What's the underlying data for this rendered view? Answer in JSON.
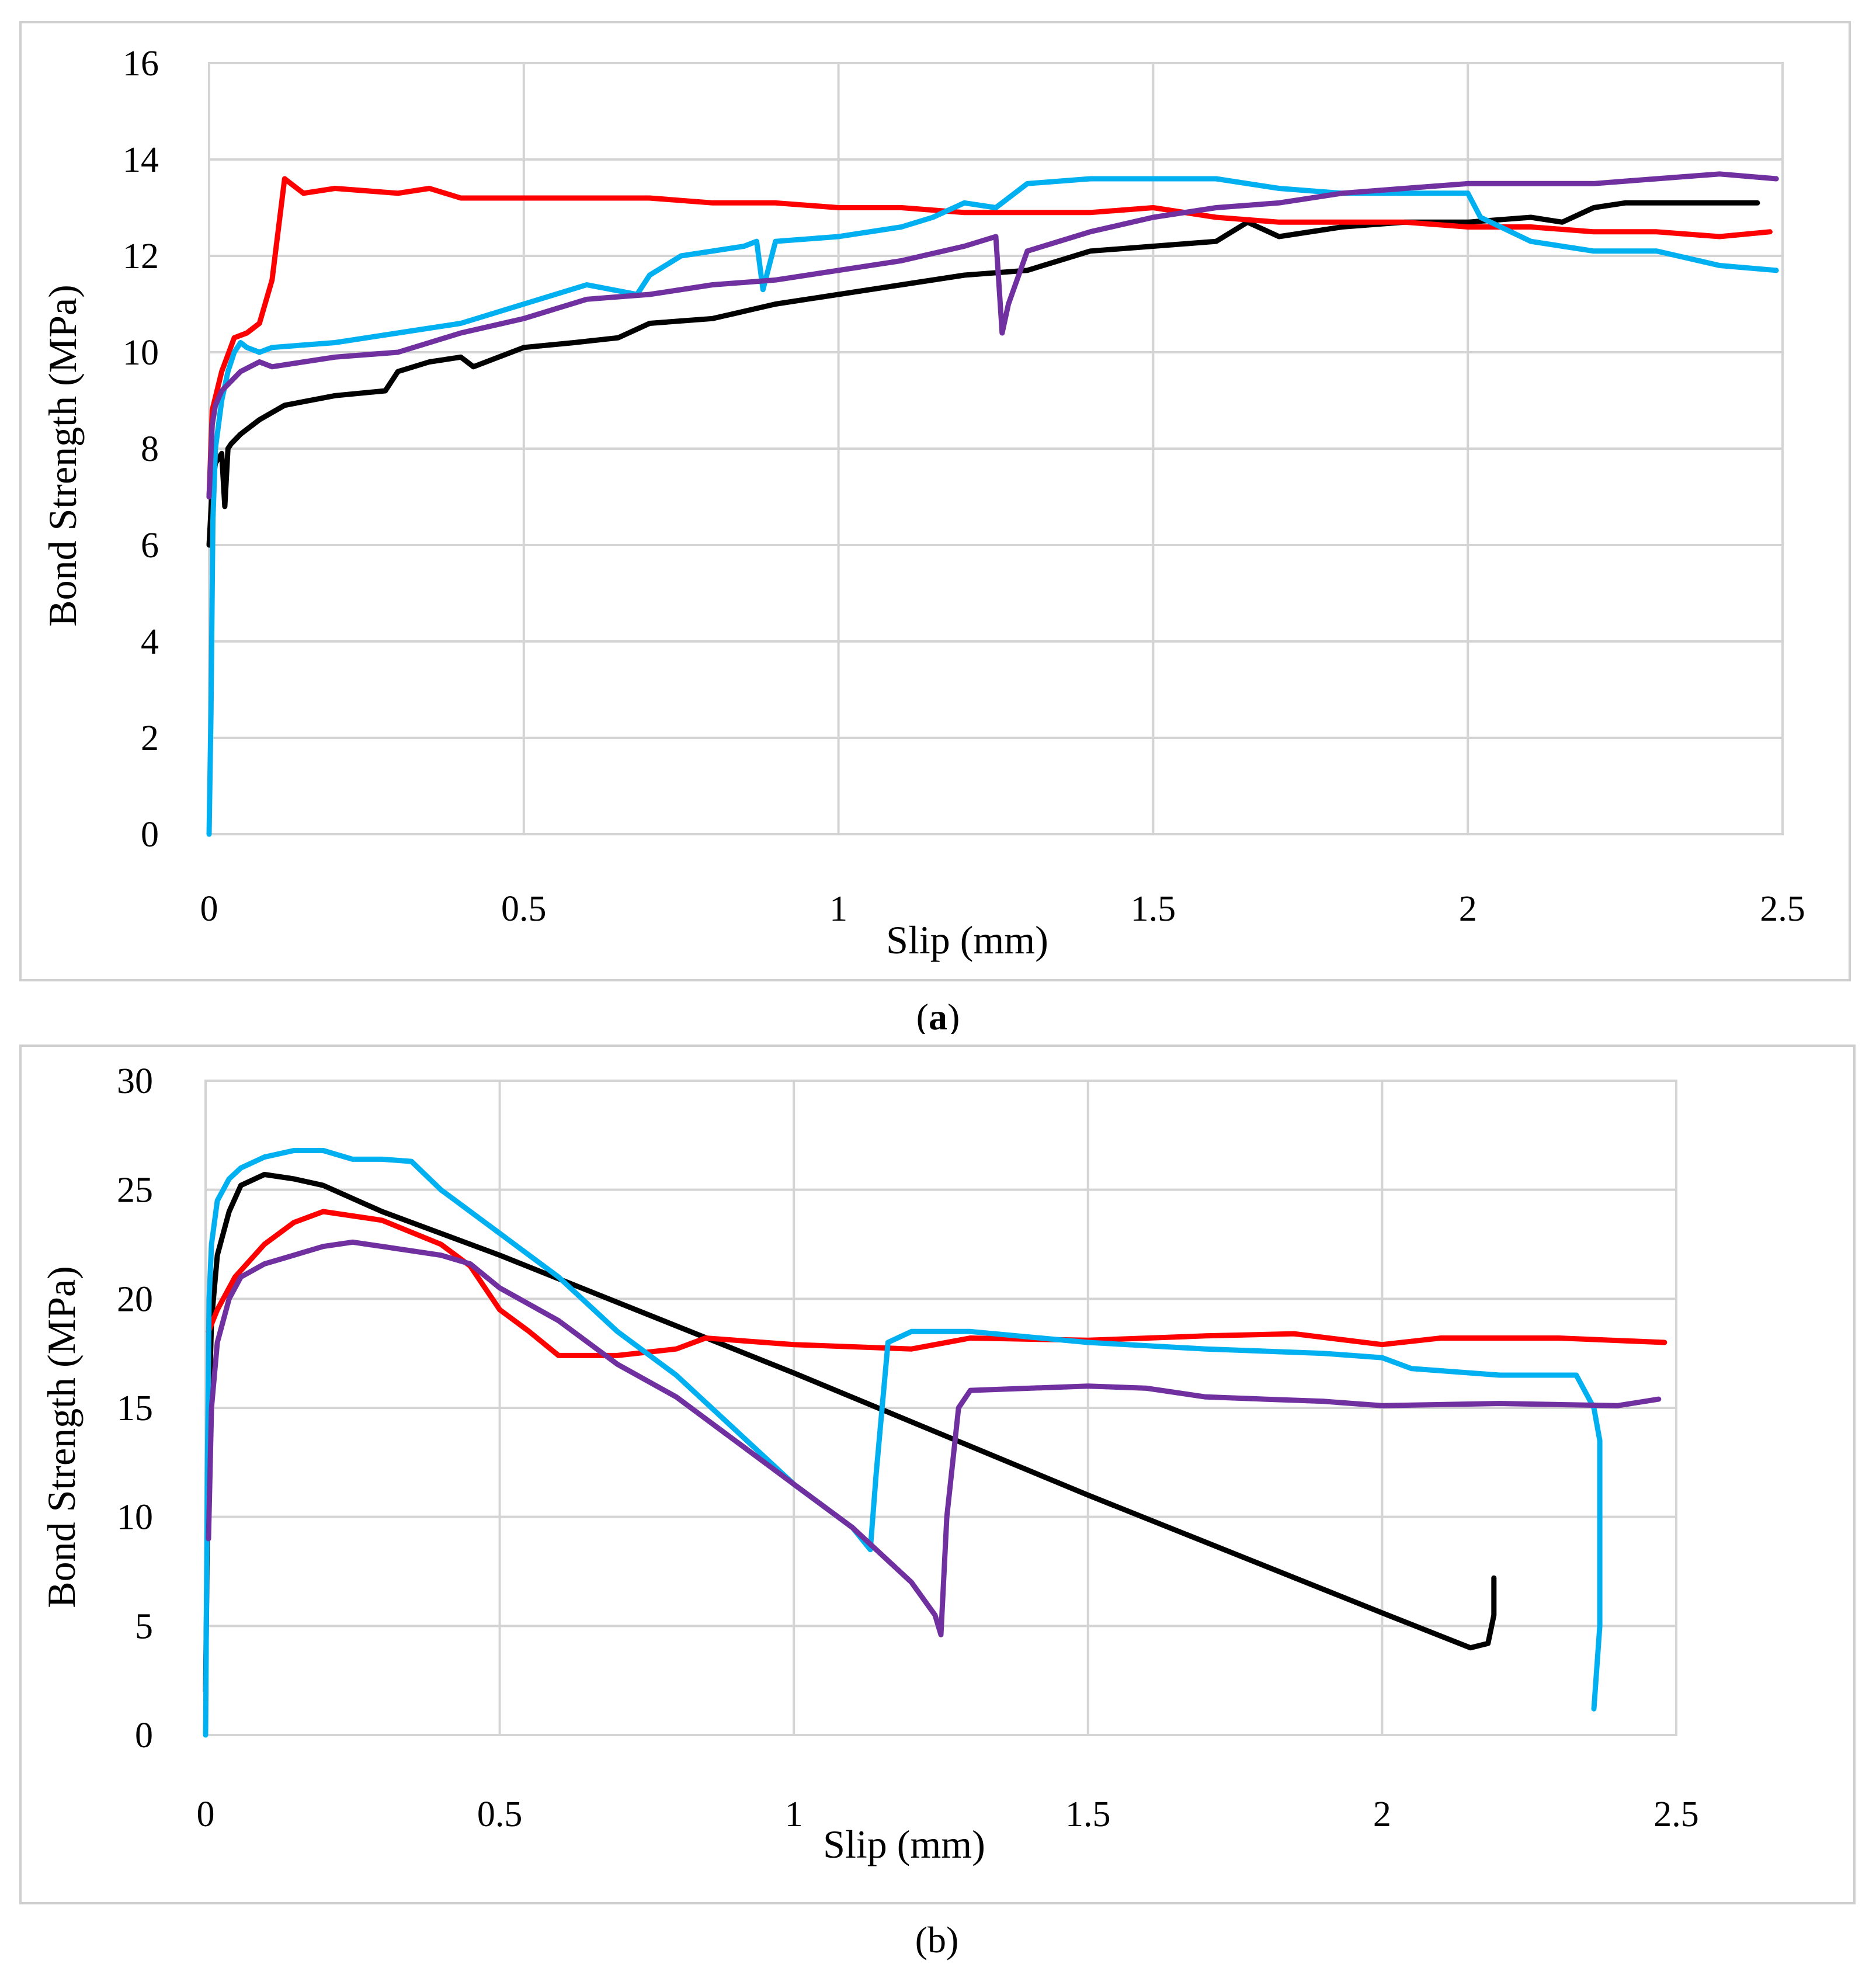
{
  "chart_data": [
    {
      "type": "line",
      "caption": "(a)",
      "caption_letter": "a",
      "xlabel": "Slip (mm)",
      "ylabel": "Bond Strength (MPa)",
      "xlim": [
        0,
        2.5
      ],
      "ylim": [
        0,
        16
      ],
      "xticks": [
        "0",
        "0.5",
        "1",
        "1.5",
        "2",
        "2.5"
      ],
      "yticks": [
        "0",
        "2",
        "4",
        "6",
        "8",
        "10",
        "12",
        "14",
        "16"
      ],
      "grid": true,
      "legend": "none",
      "series": [
        {
          "color": "#000000",
          "x": [
            0,
            0.005,
            0.01,
            0.02,
            0.025,
            0.03,
            0.035,
            0.05,
            0.08,
            0.12,
            0.2,
            0.28,
            0.3,
            0.35,
            0.4,
            0.42,
            0.5,
            0.58,
            0.65,
            0.7,
            0.8,
            0.9,
            1.0,
            1.1,
            1.2,
            1.3,
            1.35,
            1.4,
            1.5,
            1.6,
            1.65,
            1.7,
            1.8,
            1.9,
            2.0,
            2.1,
            2.15,
            2.2,
            2.25,
            2.46
          ],
          "y": [
            6.0,
            7.2,
            7.7,
            7.9,
            6.8,
            8.0,
            8.1,
            8.3,
            8.6,
            8.9,
            9.1,
            9.2,
            9.6,
            9.8,
            9.9,
            9.7,
            10.1,
            10.2,
            10.3,
            10.6,
            10.7,
            11.0,
            11.2,
            11.4,
            11.6,
            11.7,
            11.9,
            12.1,
            12.2,
            12.3,
            12.7,
            12.4,
            12.6,
            12.7,
            12.7,
            12.8,
            12.7,
            13.0,
            13.1,
            13.1
          ]
        },
        {
          "color": "#ff0000",
          "x": [
            0,
            0.005,
            0.02,
            0.04,
            0.06,
            0.08,
            0.1,
            0.12,
            0.13,
            0.15,
            0.2,
            0.3,
            0.35,
            0.4,
            0.5,
            0.6,
            0.7,
            0.8,
            0.9,
            1.0,
            1.1,
            1.2,
            1.3,
            1.4,
            1.5,
            1.6,
            1.7,
            1.8,
            1.9,
            2.0,
            2.1,
            2.2,
            2.3,
            2.4,
            2.48
          ],
          "y": [
            7.0,
            8.8,
            9.6,
            10.3,
            10.4,
            10.6,
            11.5,
            13.6,
            13.5,
            13.3,
            13.4,
            13.3,
            13.4,
            13.2,
            13.2,
            13.2,
            13.2,
            13.1,
            13.1,
            13.0,
            13.0,
            12.9,
            12.9,
            12.9,
            13.0,
            12.8,
            12.7,
            12.7,
            12.7,
            12.6,
            12.6,
            12.5,
            12.5,
            12.4,
            12.5
          ]
        },
        {
          "color": "#00b0f0",
          "x": [
            0,
            0.003,
            0.006,
            0.01,
            0.02,
            0.03,
            0.04,
            0.05,
            0.06,
            0.08,
            0.1,
            0.2,
            0.3,
            0.4,
            0.5,
            0.6,
            0.68,
            0.7,
            0.75,
            0.85,
            0.87,
            0.88,
            0.9,
            1.0,
            1.1,
            1.15,
            1.2,
            1.25,
            1.3,
            1.4,
            1.5,
            1.6,
            1.7,
            1.8,
            1.9,
            2.0,
            2.02,
            2.1,
            2.2,
            2.3,
            2.4,
            2.49
          ],
          "y": [
            0.0,
            2.5,
            6.5,
            8.0,
            9.0,
            9.6,
            10.0,
            10.2,
            10.1,
            10.0,
            10.1,
            10.2,
            10.4,
            10.6,
            11.0,
            11.4,
            11.2,
            11.6,
            12.0,
            12.2,
            12.3,
            11.3,
            12.3,
            12.4,
            12.6,
            12.8,
            13.1,
            13.0,
            13.5,
            13.6,
            13.6,
            13.6,
            13.4,
            13.3,
            13.3,
            13.3,
            12.8,
            12.3,
            12.1,
            12.1,
            11.8,
            11.7
          ]
        },
        {
          "color": "#7030a0",
          "x": [
            0,
            0.005,
            0.01,
            0.02,
            0.05,
            0.08,
            0.1,
            0.2,
            0.3,
            0.35,
            0.4,
            0.5,
            0.6,
            0.7,
            0.8,
            0.9,
            1.0,
            1.1,
            1.2,
            1.25,
            1.26,
            1.27,
            1.3,
            1.4,
            1.5,
            1.6,
            1.7,
            1.8,
            1.9,
            2.0,
            2.1,
            2.2,
            2.3,
            2.4,
            2.49
          ],
          "y": [
            7.0,
            8.5,
            8.9,
            9.2,
            9.6,
            9.8,
            9.7,
            9.9,
            10.0,
            10.2,
            10.4,
            10.7,
            11.1,
            11.2,
            11.4,
            11.5,
            11.7,
            11.9,
            12.2,
            12.4,
            10.4,
            11.0,
            12.1,
            12.5,
            12.8,
            13.0,
            13.1,
            13.3,
            13.4,
            13.5,
            13.5,
            13.5,
            13.6,
            13.7,
            13.6
          ]
        }
      ]
    },
    {
      "type": "line",
      "caption": "(b)",
      "xlabel": "Slip (mm)",
      "ylabel": "Bond Strength (MPa)",
      "xlim": [
        0,
        2.5
      ],
      "ylim": [
        0,
        30
      ],
      "xticks": [
        "0",
        "0.5",
        "1",
        "1.5",
        "2",
        "2.5"
      ],
      "yticks": [
        "0",
        "5",
        "10",
        "15",
        "20",
        "25",
        "30"
      ],
      "grid": true,
      "legend": "none",
      "series": [
        {
          "color": "#000000",
          "x": [
            0,
            0.005,
            0.01,
            0.02,
            0.04,
            0.06,
            0.1,
            0.15,
            0.2,
            0.3,
            0.4,
            0.5,
            1.0,
            1.5,
            2.0,
            2.15,
            2.18,
            2.19,
            2.19
          ],
          "y": [
            2.0,
            14.0,
            19.0,
            22.0,
            24.0,
            25.2,
            25.7,
            25.5,
            25.2,
            24.0,
            23.0,
            22.0,
            16.6,
            11.0,
            5.6,
            4.0,
            4.2,
            5.5,
            7.2
          ]
        },
        {
          "color": "#ff0000",
          "x": [
            0.005,
            0.02,
            0.05,
            0.1,
            0.15,
            0.2,
            0.3,
            0.4,
            0.45,
            0.5,
            0.55,
            0.6,
            0.7,
            0.8,
            0.85,
            1.0,
            1.2,
            1.3,
            1.5,
            1.7,
            1.85,
            2.0,
            2.1,
            2.3,
            2.48
          ],
          "y": [
            18.5,
            19.5,
            21.0,
            22.5,
            23.5,
            24.0,
            23.6,
            22.5,
            21.5,
            19.5,
            18.5,
            17.4,
            17.4,
            17.7,
            18.2,
            17.9,
            17.7,
            18.2,
            18.1,
            18.3,
            18.4,
            17.9,
            18.2,
            18.2,
            18.0
          ]
        },
        {
          "color": "#00b0f0",
          "x": [
            0,
            0.003,
            0.006,
            0.01,
            0.02,
            0.04,
            0.06,
            0.1,
            0.15,
            0.2,
            0.25,
            0.3,
            0.35,
            0.4,
            0.5,
            0.6,
            0.7,
            0.8,
            0.9,
            1.0,
            1.1,
            1.13,
            1.14,
            1.16,
            1.2,
            1.3,
            1.5,
            1.7,
            1.9,
            2.0,
            2.05,
            2.1,
            2.2,
            2.33,
            2.36,
            2.37,
            2.37,
            2.36
          ],
          "y": [
            0.0,
            12.0,
            20.0,
            22.5,
            24.5,
            25.5,
            26.0,
            26.5,
            26.8,
            26.8,
            26.4,
            26.4,
            26.3,
            25.0,
            23.0,
            21.0,
            18.5,
            16.5,
            14.0,
            11.5,
            9.5,
            8.5,
            12.0,
            18.0,
            18.5,
            18.5,
            18.0,
            17.7,
            17.5,
            17.3,
            16.8,
            16.7,
            16.5,
            16.5,
            15.0,
            13.5,
            5.0,
            1.2
          ]
        },
        {
          "color": "#7030a0",
          "x": [
            0.005,
            0.01,
            0.02,
            0.04,
            0.06,
            0.1,
            0.15,
            0.2,
            0.25,
            0.3,
            0.4,
            0.45,
            0.5,
            0.6,
            0.7,
            0.8,
            0.9,
            1.0,
            1.1,
            1.2,
            1.24,
            1.25,
            1.26,
            1.28,
            1.3,
            1.4,
            1.5,
            1.6,
            1.7,
            1.8,
            1.9,
            2.0,
            2.2,
            2.4,
            2.47
          ],
          "y": [
            9.0,
            15.0,
            18.0,
            20.0,
            21.0,
            21.6,
            22.0,
            22.4,
            22.6,
            22.4,
            22.0,
            21.6,
            20.5,
            19.0,
            17.0,
            15.5,
            13.5,
            11.5,
            9.5,
            7.0,
            5.5,
            4.6,
            10.0,
            15.0,
            15.8,
            15.9,
            16.0,
            15.9,
            15.5,
            15.4,
            15.3,
            15.1,
            15.2,
            15.1,
            15.4
          ]
        }
      ]
    }
  ]
}
